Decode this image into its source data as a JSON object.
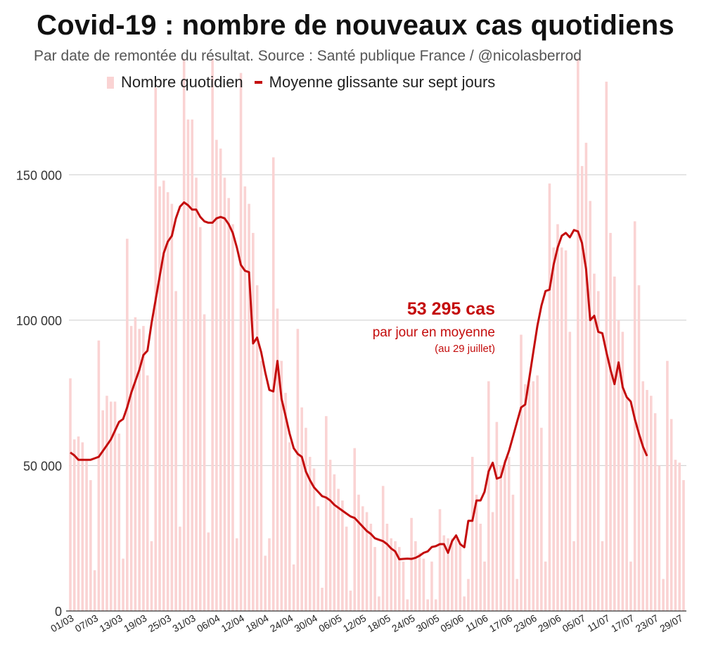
{
  "title": "Covid-19 : nombre de nouveaux cas quotidiens",
  "subtitle": "Par date de remontée du résultat. Source : Santé publique France / @nicolasberrod",
  "legend": {
    "bars": "Nombre quotidien",
    "line": "Moyenne glissante sur sept jours"
  },
  "annotation": {
    "value": "53 295 cas",
    "line1": "par jour en moyenne",
    "line2": "(au 29 juillet)"
  },
  "colors": {
    "bar": "#fad3d3",
    "line": "#c40c0c",
    "grid": "#cccccc",
    "axis": "#333333",
    "arrow": "#111111"
  },
  "chart_data": {
    "type": "bar",
    "title": "Covid-19 : nombre de nouveaux cas quotidiens",
    "ylim": [
      0,
      190000
    ],
    "yticks": [
      0,
      50000,
      100000,
      150000
    ],
    "ytick_labels": [
      "0",
      "50 000",
      "100 000",
      "150 000"
    ],
    "xtick_labels": [
      "01/03",
      "07/03",
      "13/03",
      "19/03",
      "25/03",
      "31/03",
      "06/04",
      "12/04",
      "18/04",
      "24/04",
      "30/04",
      "06/05",
      "12/05",
      "18/05",
      "24/05",
      "30/05",
      "05/06",
      "11/06",
      "17/06",
      "23/06",
      "29/06",
      "05/07",
      "11/07",
      "17/07",
      "23/07",
      "29/07"
    ],
    "series": [
      {
        "name": "Nombre quotidien",
        "kind": "bar",
        "values": [
          80000,
          59000,
          60000,
          58000,
          52000,
          45000,
          14000,
          93000,
          69000,
          74000,
          72000,
          72000,
          61000,
          18000,
          128000,
          98000,
          101000,
          97000,
          98000,
          81000,
          24000,
          180000,
          146000,
          148000,
          144000,
          140000,
          110000,
          29000,
          190000,
          169000,
          169000,
          149000,
          132000,
          102000,
          27000,
          190000,
          162000,
          159000,
          149000,
          142000,
          133000,
          25000,
          185000,
          146000,
          140000,
          130000,
          112000,
          86000,
          19000,
          25000,
          156000,
          104000,
          86000,
          75000,
          58000,
          16000,
          97000,
          70000,
          63000,
          53000,
          49000,
          36000,
          8000,
          67000,
          52000,
          47000,
          42000,
          38000,
          29000,
          7000,
          56000,
          40000,
          36000,
          34000,
          30000,
          22000,
          5000,
          43000,
          30000,
          25000,
          24000,
          22000,
          17000,
          4000,
          32000,
          24000,
          20000,
          18000,
          4000,
          17000,
          4000,
          35000,
          26000,
          25000,
          25000,
          25000,
          23000,
          5000,
          11000,
          53000,
          40000,
          30000,
          17000,
          79000,
          34000,
          65000,
          50000,
          52000,
          53000,
          40000,
          11000,
          95000,
          78000,
          80000,
          79000,
          81000,
          63000,
          17000,
          147000,
          125000,
          133000,
          125000,
          124000,
          96000,
          24000,
          190000,
          153000,
          161000,
          141000,
          116000,
          110000,
          24000,
          182000,
          130000,
          115000,
          100000,
          96000,
          73000,
          17000,
          134000,
          112000,
          79000,
          76000,
          74000,
          68000,
          50000,
          11000,
          86000,
          66000,
          52000,
          51000,
          45000
        ],
        "annotation_value": 53295
      },
      {
        "name": "Moyenne glissante sur sept jours",
        "kind": "line",
        "values": [
          54500,
          53500,
          52000,
          52000,
          52000,
          52000,
          52500,
          53000,
          55000,
          57000,
          59000,
          62000,
          65000,
          66000,
          70000,
          75000,
          79000,
          83000,
          88000,
          89500,
          99000,
          107000,
          115000,
          123000,
          127000,
          129000,
          135000,
          139000,
          140500,
          139500,
          138000,
          138000,
          135500,
          134000,
          133500,
          133500,
          135000,
          135500,
          135000,
          133000,
          130000,
          125000,
          119000,
          117000,
          116500,
          92000,
          94000,
          89000,
          82000,
          76000,
          75500,
          86000,
          73000,
          67000,
          61000,
          56000,
          54000,
          53000,
          48000,
          45000,
          42500,
          41000,
          39500,
          39000,
          38000,
          36500,
          35500,
          34500,
          33500,
          32500,
          32000,
          30500,
          29000,
          27500,
          26500,
          25000,
          24500,
          24000,
          23000,
          21500,
          20500,
          17800,
          17900,
          18000,
          17900,
          18300,
          19000,
          20000,
          20500,
          22000,
          22300,
          23000,
          23000,
          20000,
          24000,
          26000,
          23000,
          21900,
          31000,
          31000,
          38000,
          38000,
          41000,
          48000,
          51000,
          45500,
          46000,
          51000,
          55000,
          60000,
          65000,
          70000,
          71000,
          80000,
          89000,
          98000,
          105000,
          110000,
          110500,
          119000,
          125000,
          129000,
          130000,
          128500,
          131000,
          130500,
          126500,
          117500,
          100000,
          101500,
          96000,
          95500,
          89000,
          83000,
          78000,
          85500,
          77000,
          73500,
          72000,
          66000,
          61000,
          56500,
          53295
        ]
      }
    ]
  }
}
